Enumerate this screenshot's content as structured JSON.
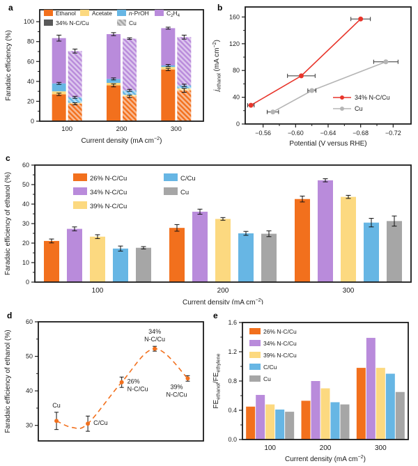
{
  "panels": {
    "a": {
      "letter": "a"
    },
    "b": {
      "letter": "b"
    },
    "c": {
      "letter": "c"
    },
    "d": {
      "letter": "d"
    },
    "e": {
      "letter": "e"
    }
  },
  "colors": {
    "orange": "#f2701d",
    "purple": "#b98bdb",
    "yellow": "#fcd980",
    "blue": "#67b6e4",
    "gray": "#a6a6a6",
    "dark_gray": "#595959",
    "red_line": "#e8352b",
    "gray_line": "#b5b5b5",
    "axis": "#1a1a1a"
  },
  "chart_data": [
    {
      "panel": "a",
      "type": "bar",
      "subtype": "stacked-grouped",
      "xlabel": "Current density (mA cm^{−2})",
      "ylabel": "Faradaic efficiency (%)",
      "categories": [
        "100",
        "200",
        "300"
      ],
      "ylim": [
        0,
        112
      ],
      "yticks": [
        0,
        20,
        40,
        60,
        80,
        100
      ],
      "components": [
        {
          "key": "ethanol",
          "label": "Ethanol",
          "color": "#f2701d"
        },
        {
          "key": "acetate",
          "label": "Acetate",
          "color": "#fcd980"
        },
        {
          "key": "nproh",
          "label": "*n*-PrOH",
          "color": "#67b6e4"
        },
        {
          "key": "c2h4",
          "label": "C_{2}H_{4}",
          "color": "#b98bdb"
        }
      ],
      "bar_series": [
        {
          "name": "34% N-C/Cu",
          "hatched": false,
          "legend_color": "#595959",
          "ethanol": [
            27,
            36,
            52
          ],
          "acetate": [
            3,
            2.5,
            2.5
          ],
          "nproh": [
            8,
            4,
            1.5
          ],
          "c2h4": [
            45.5,
            45,
            37.5
          ],
          "err_ethanol": [
            1.2,
            1.5,
            1.2
          ],
          "err_nproh": [
            1,
            1,
            1
          ],
          "err_total": [
            3,
            1.5,
            1
          ]
        },
        {
          "name": "Cu",
          "hatched": true,
          "legend_color": "#a6a6a6",
          "ethanol": [
            17.5,
            25,
            31
          ],
          "acetate": [
            1,
            1.5,
            2
          ],
          "nproh": [
            5.5,
            4.5,
            3
          ],
          "c2h4": [
            46.5,
            52,
            48.5
          ],
          "err_ethanol": [
            1,
            1.2,
            2
          ],
          "err_nproh": [
            1,
            1,
            1.2
          ],
          "err_total": [
            2,
            0.8,
            2
          ]
        }
      ]
    },
    {
      "panel": "b",
      "type": "line",
      "xlabel": "Potential (V versus RHE)",
      "ylabel": "*j*_{ethanol} (mA cm^{−2})",
      "xlim": [
        -0.538,
        -0.742
      ],
      "xticks": [
        -0.56,
        -0.6,
        -0.64,
        -0.68,
        -0.72
      ],
      "ylim": [
        0,
        175
      ],
      "yticks": [
        0,
        40,
        80,
        120,
        160
      ],
      "series": [
        {
          "name": "34% N-C/Cu",
          "color": "#e8352b",
          "points": [
            {
              "x": -0.545,
              "y": 28,
              "xerr": 0.004
            },
            {
              "x": -0.607,
              "y": 72,
              "xerr": 0.017
            },
            {
              "x": -0.68,
              "y": 157,
              "xerr": 0.012
            }
          ]
        },
        {
          "name": "Cu",
          "color": "#b5b5b5",
          "points": [
            {
              "x": -0.572,
              "y": 18,
              "xerr": 0.007
            },
            {
              "x": -0.62,
              "y": 50,
              "xerr": 0.005
            },
            {
              "x": -0.711,
              "y": 93,
              "xerr": 0.015
            }
          ]
        }
      ]
    },
    {
      "panel": "c",
      "type": "bar",
      "subtype": "grouped",
      "xlabel": "Current density (mA cm^{−2})",
      "ylabel": "Faradaic efficiency of ethanol (%)",
      "categories": [
        "100",
        "200",
        "300"
      ],
      "ylim": [
        0,
        60
      ],
      "yticks": [
        0,
        10,
        20,
        30,
        40,
        50,
        60
      ],
      "series": [
        {
          "name": "26% N-C/Cu",
          "color": "#f2701d",
          "values": [
            21.1,
            27.8,
            42.6
          ],
          "errors": [
            1.0,
            1.7,
            1.5
          ]
        },
        {
          "name": "34% N-C/Cu",
          "color": "#b98bdb",
          "values": [
            27.3,
            36.1,
            52.2
          ],
          "errors": [
            1.0,
            1.3,
            0.8
          ]
        },
        {
          "name": "39% N-C/Cu",
          "color": "#fcd980",
          "values": [
            23.3,
            32.4,
            43.7
          ],
          "errors": [
            1.0,
            0.7,
            0.8
          ]
        },
        {
          "name": "C/Cu",
          "color": "#67b6e4",
          "values": [
            17.2,
            25.0,
            30.5
          ],
          "errors": [
            1.3,
            1.0,
            2.2
          ]
        },
        {
          "name": "Cu",
          "color": "#a6a6a6",
          "values": [
            17.6,
            24.8,
            31.3
          ],
          "errors": [
            0.6,
            1.5,
            2.6
          ]
        }
      ]
    },
    {
      "panel": "d",
      "type": "scatter",
      "subtype": "dashed-curve",
      "ylabel": "Faradaic efficiency of ethanol (%)",
      "ylim": [
        25.5,
        60
      ],
      "yticks": [
        30,
        40,
        50,
        60
      ],
      "line_color": "#f2701d",
      "dip_between_first_two": 29.4,
      "points": [
        {
          "label_lines": [
            "Cu"
          ],
          "y": 31.3,
          "err": 2.5,
          "label_pos": "above"
        },
        {
          "label_lines": [
            "C/Cu"
          ],
          "y": 30.5,
          "err": 2.2,
          "label_pos": "right"
        },
        {
          "label_lines": [
            "26%",
            "N-C/Cu"
          ],
          "y": 42.5,
          "err": 1.5,
          "label_pos": "right"
        },
        {
          "label_lines": [
            "34%",
            "N-C/Cu"
          ],
          "y": 52.2,
          "err": 0.7,
          "label_pos": "above"
        },
        {
          "label_lines": [
            "39%",
            "N-C/Cu"
          ],
          "y": 43.6,
          "err": 0.8,
          "label_pos": "below-left"
        }
      ]
    },
    {
      "panel": "e",
      "type": "bar",
      "subtype": "grouped",
      "xlabel": "Current density (mA cm^{−2})",
      "ylabel": "FE_{ethanol}/FE_{ethylene}",
      "categories": [
        "100",
        "200",
        "300"
      ],
      "ylim": [
        0,
        1.6
      ],
      "yticks": [
        0,
        0.4,
        0.8,
        1.2,
        1.6
      ],
      "ytick_decimals": 1,
      "series": [
        {
          "name": "26% N-C/Cu",
          "color": "#f2701d",
          "values": [
            0.45,
            0.53,
            0.98
          ]
        },
        {
          "name": "34% N-C/Cu",
          "color": "#b98bdb",
          "values": [
            0.61,
            0.8,
            1.39
          ]
        },
        {
          "name": "39% N-C/Cu",
          "color": "#fcd980",
          "values": [
            0.48,
            0.7,
            0.98
          ]
        },
        {
          "name": "C/Cu",
          "color": "#67b6e4",
          "values": [
            0.41,
            0.51,
            0.9
          ]
        },
        {
          "name": "Cu",
          "color": "#a6a6a6",
          "values": [
            0.38,
            0.48,
            0.65
          ]
        }
      ]
    }
  ]
}
